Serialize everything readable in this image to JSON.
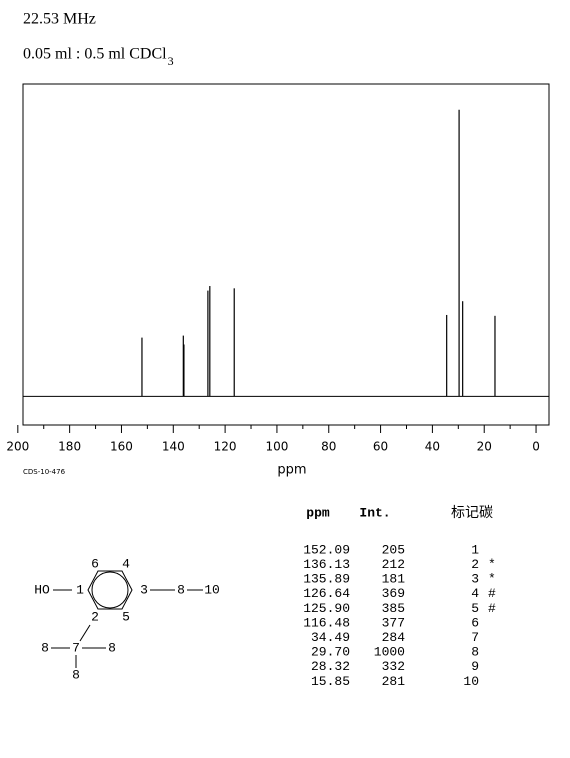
{
  "header": {
    "frequency": "22.53 MHz",
    "sample": "0.05 ml : 0.5 ml CDCl",
    "sample_subscript": "3"
  },
  "chart_data": {
    "type": "stem",
    "x_label": "ppm",
    "code": "CDS-10-476",
    "x": [
      152.09,
      136.13,
      135.89,
      126.64,
      125.9,
      116.48,
      34.49,
      29.7,
      28.32,
      15.85
    ],
    "values": [
      205,
      212,
      181,
      369,
      385,
      377,
      284,
      1000,
      332,
      281
    ],
    "color": "#000000",
    "xlim": [
      198,
      -5
    ],
    "ylim": [
      -100,
      1090
    ],
    "xticks": [
      200,
      180,
      160,
      140,
      120,
      100,
      80,
      60,
      40,
      20,
      0
    ],
    "minor_xticks": [
      190,
      170,
      150,
      130,
      110,
      90,
      70,
      50,
      30,
      10
    ]
  },
  "table": {
    "headers": [
      "ppm",
      "Int.",
      "标记碳"
    ],
    "rows": [
      {
        "ppm": "152.09",
        "int": 205,
        "carbon": 1
      },
      {
        "ppm": "136.13",
        "int": 212,
        "carbon": 2,
        "mark": "*"
      },
      {
        "ppm": "135.89",
        "int": 181,
        "carbon": 3,
        "mark": "*"
      },
      {
        "ppm": "126.64",
        "int": 369,
        "carbon": 4,
        "mark": "#"
      },
      {
        "ppm": "125.90",
        "int": 385,
        "carbon": 5,
        "mark": "#"
      },
      {
        "ppm": "116.48",
        "int": 377,
        "carbon": 6
      },
      {
        "ppm": "34.49",
        "int": 284,
        "carbon": 7
      },
      {
        "ppm": "29.70",
        "int": 1000,
        "carbon": 8
      },
      {
        "ppm": "28.32",
        "int": 332,
        "carbon": 9
      },
      {
        "ppm": "15.85",
        "int": 281,
        "carbon": 10
      }
    ]
  },
  "structure": {
    "labels": [
      "HO",
      "1",
      "6",
      "4",
      "3",
      "8",
      "10",
      "2",
      "5",
      "8",
      "7",
      "8",
      "8"
    ]
  }
}
